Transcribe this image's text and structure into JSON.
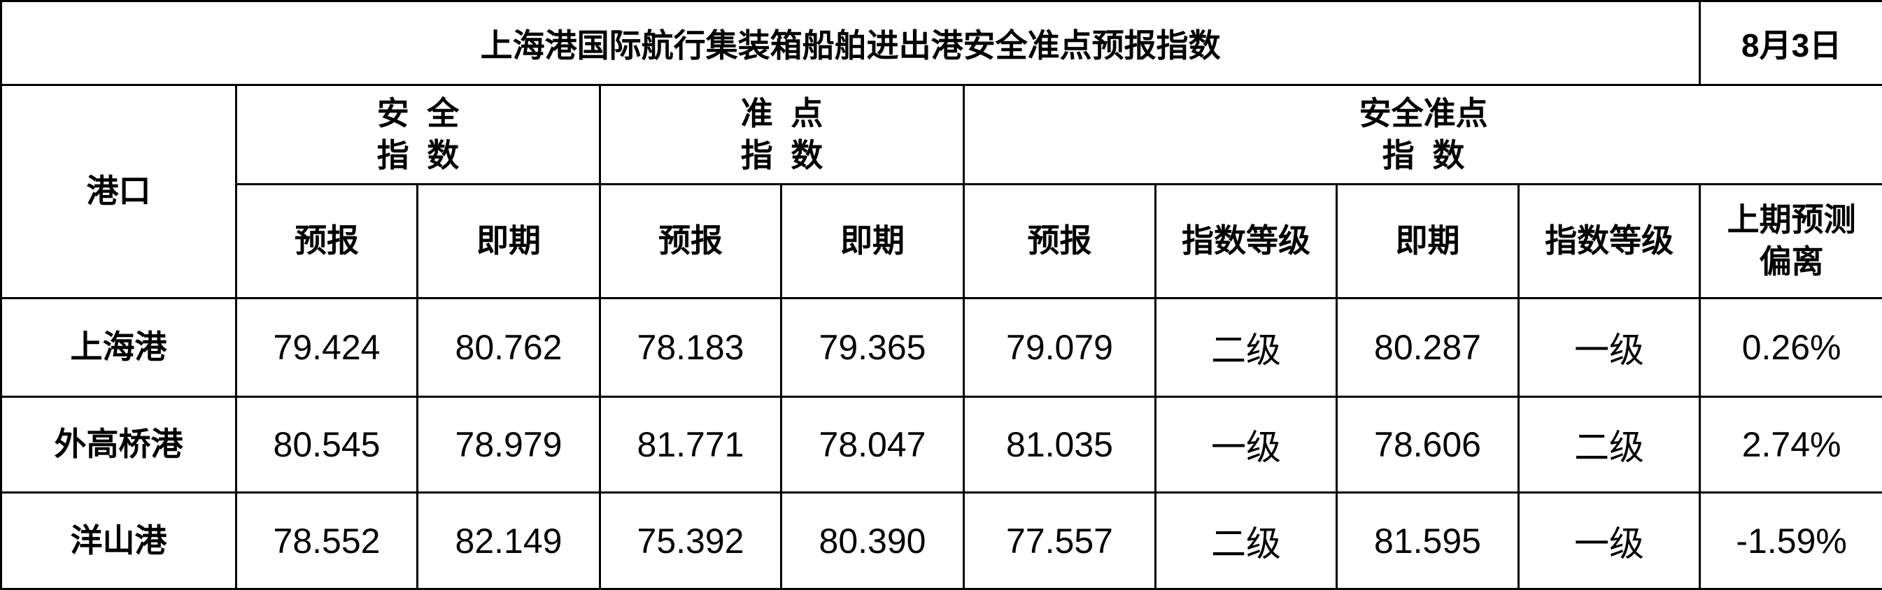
{
  "title": "上海港国际航行集装箱船舶进出港安全准点预报指数",
  "date": "8月3日",
  "headers": {
    "port": "港口",
    "groups": [
      {
        "line1": "安  全",
        "line2": "指  数"
      },
      {
        "line1": "准  点",
        "line2": "指  数"
      },
      {
        "line1": "安全准点",
        "line2": "指  数"
      }
    ],
    "sub": [
      "预报",
      "即期",
      "预报",
      "即期",
      "预报",
      "指数等级",
      "即期",
      "指数等级"
    ],
    "deviation_line1": "上期预测",
    "deviation_line2": "偏离"
  },
  "rows": [
    {
      "port": "上海港",
      "cells": [
        "79.424",
        "80.762",
        "78.183",
        "79.365",
        "79.079",
        "二级",
        "80.287",
        "一级",
        "0.26%"
      ]
    },
    {
      "port": "外高桥港",
      "cells": [
        "80.545",
        "78.979",
        "81.771",
        "78.047",
        "81.035",
        "一级",
        "78.606",
        "二级",
        "2.74%"
      ]
    },
    {
      "port": "洋山港",
      "cells": [
        "78.552",
        "82.149",
        "75.392",
        "80.390",
        "77.557",
        "二级",
        "81.595",
        "一级",
        "-1.59%"
      ]
    }
  ]
}
